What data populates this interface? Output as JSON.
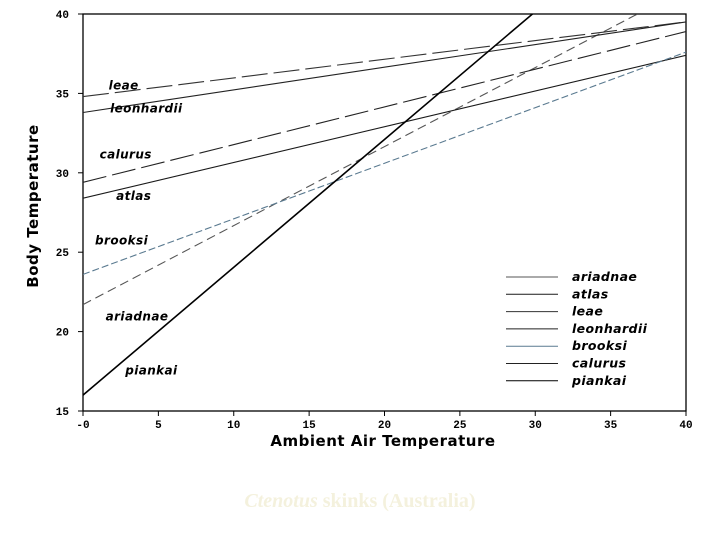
{
  "chart_data": {
    "type": "line",
    "xlabel": "Ambient Air Temperature",
    "ylabel": "Body Temperature",
    "xlim": [
      0,
      40
    ],
    "ylim": [
      15,
      40
    ],
    "xticks": [
      0,
      5,
      10,
      15,
      20,
      25,
      30,
      35,
      40
    ],
    "xtick_labels": [
      "-0",
      "5",
      "10",
      "15",
      "20",
      "25",
      "30",
      "35",
      "40"
    ],
    "yticks": [
      15,
      20,
      25,
      30,
      35,
      40
    ],
    "ytick_labels": [
      "15",
      "20",
      "25",
      "30",
      "35",
      "40"
    ],
    "legend_position": "bottom-right",
    "series": [
      {
        "name": "ariadnae",
        "x": [
          0,
          40
        ],
        "y": [
          21.7,
          41.6
        ],
        "color": "#555555",
        "dash": "9 5"
      },
      {
        "name": "atlas",
        "x": [
          0,
          40
        ],
        "y": [
          28.4,
          37.4
        ],
        "color": "#1a1a1a",
        "dash": ""
      },
      {
        "name": "leae",
        "x": [
          0,
          40
        ],
        "y": [
          34.8,
          39.5
        ],
        "color": "#333333",
        "dash": "26 6"
      },
      {
        "name": "leonhardii",
        "x": [
          0,
          40
        ],
        "y": [
          33.8,
          39.5
        ],
        "color": "#222222",
        "dash": ""
      },
      {
        "name": "brooksi",
        "x": [
          0,
          40
        ],
        "y": [
          23.6,
          37.6
        ],
        "color": "#5a7a90",
        "dash": "7 3"
      },
      {
        "name": "calurus",
        "x": [
          0,
          40
        ],
        "y": [
          29.4,
          38.9
        ],
        "color": "#222222",
        "dash": "24 6"
      },
      {
        "name": "piankai",
        "x": [
          0,
          40
        ],
        "y": [
          16.0,
          48.2
        ],
        "color": "#000000",
        "dash": ""
      }
    ],
    "line_labels": [
      {
        "text": "leae",
        "x": 1.7,
        "y": 35.25
      },
      {
        "text": "leonhardii",
        "x": 1.8,
        "y": 33.8
      },
      {
        "text": "calurus",
        "x": 1.1,
        "y": 30.9
      },
      {
        "text": "atlas",
        "x": 2.2,
        "y": 28.3
      },
      {
        "text": "brooksi",
        "x": 0.8,
        "y": 25.5
      },
      {
        "text": "ariadnae",
        "x": 1.5,
        "y": 20.7
      },
      {
        "text": "piankai",
        "x": 2.8,
        "y": 17.3
      }
    ],
    "legend": [
      "ariadnae",
      "atlas",
      "leae",
      "leonhardii",
      "brooksi",
      "calurus",
      "piankai"
    ]
  },
  "caption": {
    "italic": "Ctenotus",
    "rest": " skinks (Australia)"
  }
}
